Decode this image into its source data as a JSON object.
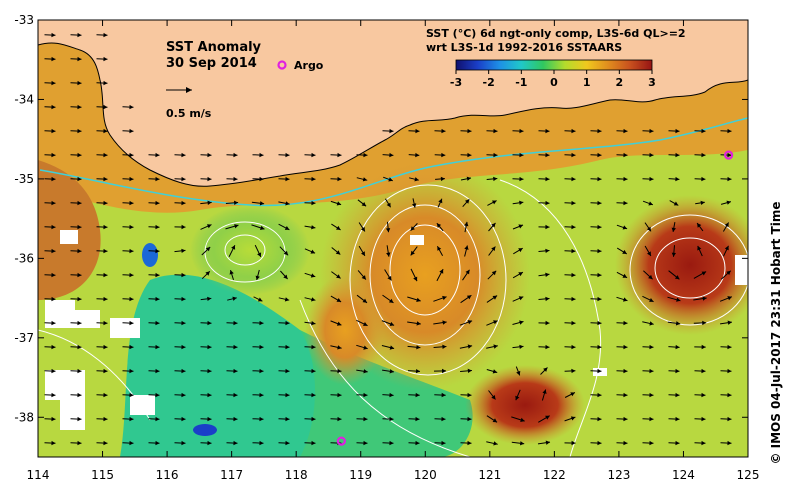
{
  "title": "SST Anomaly",
  "date": "30 Sep 2014",
  "arrow_scale_label": "0.5 m/s",
  "argo_label": "Argo",
  "product_line1": "SST (°C) 6d ngt-only comp, L3S-6d QL>=2",
  "product_line2": "wrt L3S-1d 1992-2016 SSTAARS",
  "colorbar": {
    "ticks": [
      "-3",
      "-2",
      "-1",
      "0",
      "1",
      "2",
      "3"
    ],
    "range": [
      -3,
      3
    ],
    "colors": [
      "#10106e",
      "#1a3fc8",
      "#1e90e6",
      "#20c8c8",
      "#30c860",
      "#b4dc2c",
      "#f0c81e",
      "#e08c1e",
      "#c8501e",
      "#961414"
    ]
  },
  "credit": "©  IMOS 04-Jul-2017 23:31 Hobart Time",
  "x_axis": {
    "range": [
      114,
      125
    ],
    "ticks": [
      "114",
      "115",
      "116",
      "117",
      "118",
      "119",
      "120",
      "121",
      "122",
      "123",
      "124",
      "125"
    ]
  },
  "y_axis": {
    "range": [
      -33,
      -38.5
    ],
    "ticks": [
      "-33",
      "-34",
      "-35",
      "-36",
      "-37",
      "-38"
    ]
  },
  "argo_floats": [
    {
      "lon": 124.7,
      "lat": -34.7
    },
    {
      "lon": 118.7,
      "lat": -38.3
    }
  ],
  "colors": {
    "land": "#f8c8a0",
    "ocean_warm": "#d89a34",
    "ocean_mid": "#a8d040",
    "ocean_cool": "#28c890",
    "argo": "#e020e0",
    "coast": "#000000"
  }
}
